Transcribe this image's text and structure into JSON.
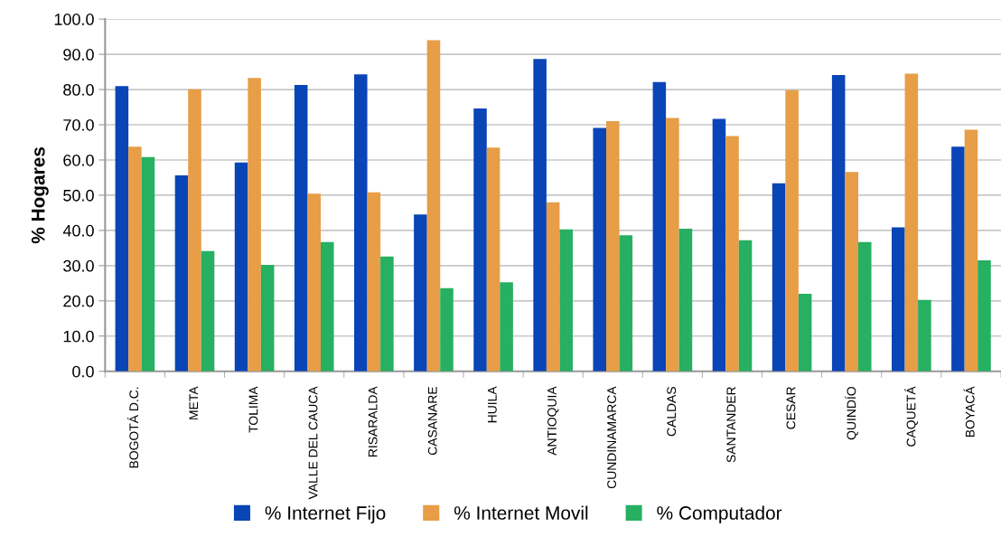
{
  "chart_data": {
    "type": "bar",
    "ylabel": "% Hogares",
    "categories": [
      "BOGOTÁ D.C.",
      "META",
      "TOLIMA",
      "VALLE DEL CAUCA",
      "RISARALDA",
      "CASANARE",
      "HUILA",
      "ANTIOQUIA",
      "CUNDINAMARCA",
      "CALDAS",
      "SANTANDER",
      "CESAR",
      "QUINDÍO",
      "CAQUETÁ",
      "BOYACÁ"
    ],
    "series": [
      {
        "name": "% Internet Fijo",
        "color": "#0a45b7",
        "values": [
          81.0,
          55.6,
          59.3,
          81.3,
          84.3,
          44.5,
          74.6,
          88.7,
          69.1,
          82.1,
          71.7,
          53.4,
          84.1,
          40.9,
          63.8
        ]
      },
      {
        "name": "% Internet Movil",
        "color": "#e79e47",
        "values": [
          63.8,
          80.1,
          83.3,
          50.4,
          50.8,
          94.0,
          63.5,
          48.0,
          71.0,
          71.9,
          66.8,
          79.8,
          56.6,
          84.5,
          68.6
        ]
      },
      {
        "name": "% Computador",
        "color": "#27af62",
        "values": [
          60.8,
          34.1,
          30.2,
          36.7,
          32.6,
          23.6,
          25.3,
          40.3,
          38.6,
          40.5,
          37.2,
          22.0,
          36.7,
          20.3,
          31.5
        ]
      }
    ],
    "ylim": [
      0,
      100
    ],
    "yticks": [
      {
        "value": 0,
        "label": "0.0"
      },
      {
        "value": 10,
        "label": "10.0"
      },
      {
        "value": 20,
        "label": "20.0"
      },
      {
        "value": 30,
        "label": "30.0"
      },
      {
        "value": 40,
        "label": "40.0"
      },
      {
        "value": 50,
        "label": "50.0"
      },
      {
        "value": 60,
        "label": "60.0"
      },
      {
        "value": 70,
        "label": "70.0"
      },
      {
        "value": 80,
        "label": "80.0"
      },
      {
        "value": 90,
        "label": "90.0"
      },
      {
        "value": 100,
        "label": "100.0"
      }
    ],
    "grid": "y",
    "legend": "bottom"
  }
}
